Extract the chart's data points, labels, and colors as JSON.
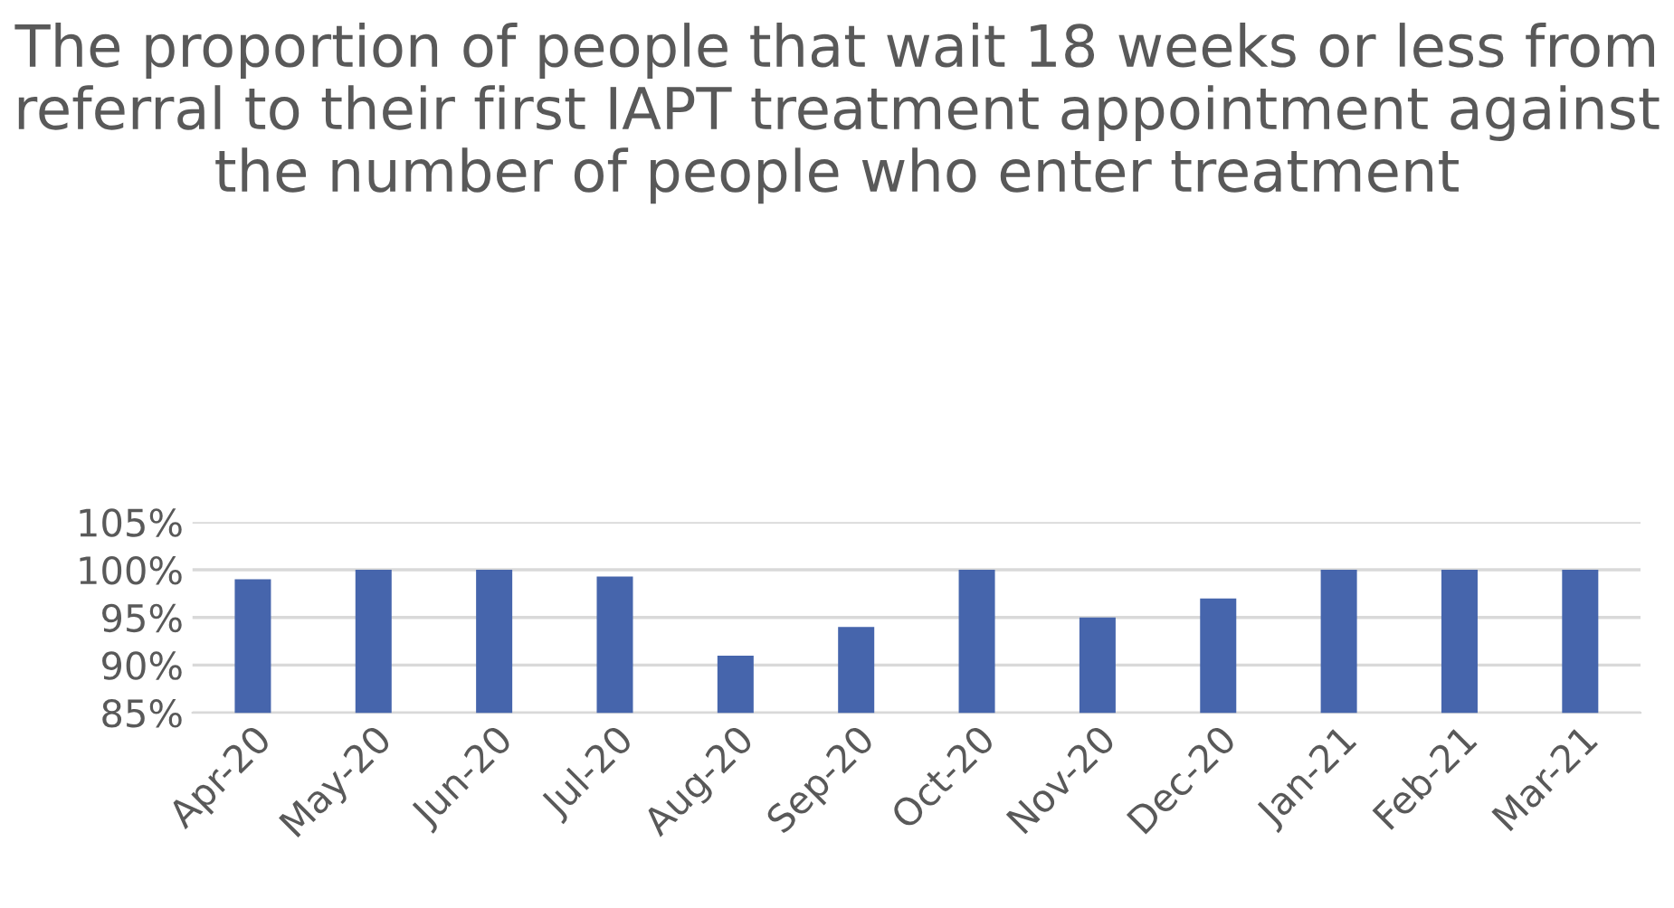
{
  "chart_data": {
    "type": "bar",
    "title": "The proportion of people that wait 18 weeks or less from referral to their first IAPT treatment appointment against the number of people who enter treatment",
    "categories": [
      "Apr-20",
      "May-20",
      "Jun-20",
      "Jul-20",
      "Aug-20",
      "Sep-20",
      "Oct-20",
      "Nov-20",
      "Dec-20",
      "Jan-21",
      "Feb-21",
      "Mar-21"
    ],
    "values": [
      99.0,
      100,
      100,
      99.3,
      91,
      94,
      100,
      95,
      97,
      100,
      100,
      100
    ],
    "color": "#4665ac",
    "ylim": [
      85,
      105
    ],
    "yticks": [
      {
        "value": 85,
        "label": "85%"
      },
      {
        "value": 90,
        "label": "90%"
      },
      {
        "value": 95,
        "label": "95%"
      },
      {
        "value": 100,
        "label": "100%"
      },
      {
        "value": 105,
        "label": "105%"
      }
    ],
    "grid": "y"
  }
}
